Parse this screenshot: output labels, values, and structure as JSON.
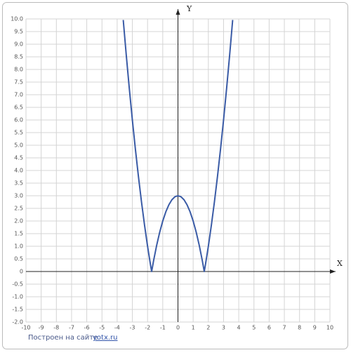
{
  "chart_data": {
    "type": "line",
    "x_label": "X",
    "y_label": "Y",
    "xlim": [
      -10,
      10
    ],
    "ylim": [
      -2,
      10
    ],
    "xticks": [
      -10,
      -9,
      -8,
      -7,
      -6,
      -5,
      -4,
      -3,
      -2,
      -1,
      0,
      1,
      2,
      3,
      4,
      5,
      6,
      7,
      8,
      9,
      10
    ],
    "yticks": [
      {
        "value": 10,
        "label": "10.0"
      },
      {
        "value": 9.5,
        "label": "9.5"
      },
      {
        "value": 9,
        "label": "9.0"
      },
      {
        "value": 8.5,
        "label": "8.5"
      },
      {
        "value": 8,
        "label": "8.0"
      },
      {
        "value": 7.5,
        "label": "7.5"
      },
      {
        "value": 7,
        "label": "7.0"
      },
      {
        "value": 6.5,
        "label": "6.5"
      },
      {
        "value": 6,
        "label": "6.0"
      },
      {
        "value": 5.5,
        "label": "5.5"
      },
      {
        "value": 5,
        "label": "5.0"
      },
      {
        "value": 4.5,
        "label": "4.5"
      },
      {
        "value": 4,
        "label": "4.0"
      },
      {
        "value": 3.5,
        "label": "3.5"
      },
      {
        "value": 3,
        "label": "3.0"
      },
      {
        "value": 2.5,
        "label": "2.5"
      },
      {
        "value": 2,
        "label": "2.0"
      },
      {
        "value": 1.5,
        "label": "1.5"
      },
      {
        "value": 1,
        "label": "1.0"
      },
      {
        "value": 0.5,
        "label": "0.5"
      },
      0,
      {
        "value": -0.5,
        "label": "-0.5"
      },
      {
        "value": -1,
        "label": "-1.0"
      },
      {
        "value": -1.5,
        "label": "-1.5"
      },
      {
        "value": -2,
        "label": "-2.0"
      }
    ],
    "grid": true,
    "series": [
      {
        "color": "#3a5ba6",
        "x": [
          -3.6,
          -3.4,
          -3.2,
          -3.0,
          -2.8,
          -2.6,
          -2.4,
          -2.2,
          -2.0,
          -1.8,
          -1.73,
          -1.6,
          -1.4,
          -1.2,
          -1.0,
          -0.8,
          -0.6,
          -0.4,
          -0.2,
          0,
          0.2,
          0.4,
          0.6,
          0.8,
          1.0,
          1.2,
          1.4,
          1.6,
          1.73,
          1.8,
          2.0,
          2.2,
          2.4,
          2.6,
          2.8,
          3.0,
          3.2,
          3.4,
          3.6
        ],
        "values": [
          9.96,
          8.56,
          7.24,
          6,
          4.84,
          3.76,
          2.76,
          1.84,
          1,
          0.24,
          0,
          0.44,
          1.04,
          1.56,
          2,
          2.36,
          2.64,
          2.84,
          2.96,
          3,
          2.96,
          2.84,
          2.64,
          2.36,
          2,
          1.56,
          1.04,
          0.44,
          0,
          0.24,
          1,
          1.84,
          2.76,
          3.76,
          4.84,
          6,
          7.24,
          8.56,
          9.96
        ]
      }
    ]
  },
  "footer": {
    "text": "Построен на сайте",
    "link": "yotx.ru"
  }
}
